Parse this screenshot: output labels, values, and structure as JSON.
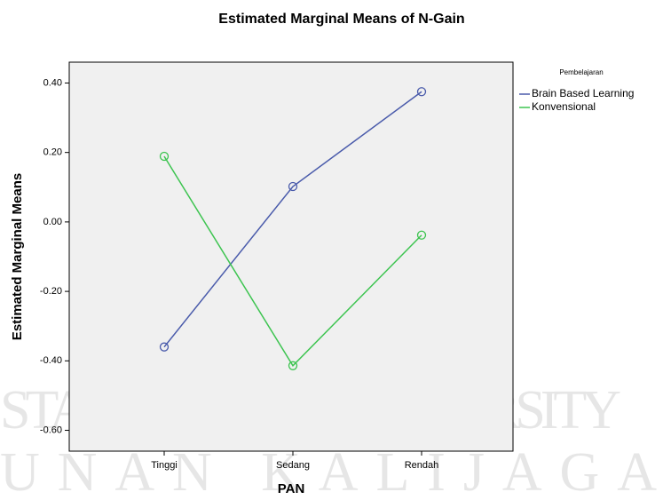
{
  "watermark": [
    "STATE ISLAMIC UNIVERSITY",
    "UNAN KALIJAGA"
  ],
  "chart_data": {
    "type": "line",
    "title": "Estimated Marginal Means of N-Gain",
    "x_label": "PAN",
    "y_label": "Estimated Marginal Means",
    "categories": [
      "Tinggi",
      "Sedang",
      "Rendah"
    ],
    "legend_title": "Pembelajaran",
    "series": [
      {
        "name": "Brain Based Learning",
        "color": "#4a5bab",
        "values": [
          -0.36,
          0.102,
          0.375
        ]
      },
      {
        "name": "Konvensional",
        "color": "#3dc450",
        "values": [
          0.189,
          -0.414,
          -0.038
        ]
      }
    ],
    "ylim": [
      -0.66,
      0.46
    ],
    "yticks": [
      {
        "value": -0.6,
        "label": "-0.60"
      },
      {
        "value": -0.4,
        "label": "-0.40"
      },
      {
        "value": -0.2,
        "label": "-0.20"
      },
      {
        "value": 0,
        "label": "0.00"
      },
      {
        "value": 0.2,
        "label": "0.20"
      },
      {
        "value": 0.4,
        "label": "0.40"
      }
    ],
    "marker": "circle",
    "plot_background": "#f0f0f0"
  }
}
